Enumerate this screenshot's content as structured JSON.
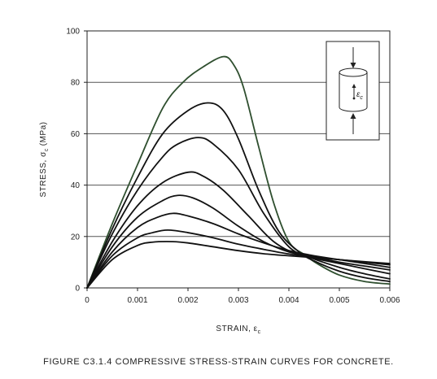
{
  "figure_caption": "FIGURE  C3.1.4   COMPRESSIVE STRESS-STRAIN CURVES FOR CONCRETE.",
  "chart_data": {
    "type": "line",
    "title": "",
    "xlabel": "STRAIN, ε",
    "xlabel_subscript": "c",
    "ylabel_prefix": "STRESS, σ",
    "ylabel_subscript": "c",
    "ylabel_suffix": "(MPa)",
    "xlim": [
      0,
      0.006
    ],
    "ylim": [
      0,
      100
    ],
    "x_ticks": [
      0,
      0.001,
      0.002,
      0.003,
      0.004,
      0.005,
      0.006
    ],
    "x_tick_labels": [
      "0",
      "0.001",
      "0.002",
      "0.003",
      "0.004",
      "0.005",
      "0.006"
    ],
    "y_ticks": [
      0,
      20,
      40,
      60,
      80,
      100
    ],
    "y_tick_labels": [
      "0",
      "20",
      "40",
      "60",
      "80",
      "100"
    ],
    "grid": "horizontal",
    "inset": {
      "strain_label": "ε",
      "strain_subscript": "c"
    },
    "series": [
      {
        "color": "#2f4f2f",
        "points": [
          [
            0,
            0
          ],
          [
            0.0005,
            25
          ],
          [
            0.001,
            48
          ],
          [
            0.0015,
            70
          ],
          [
            0.0019,
            80
          ],
          [
            0.0023,
            86
          ],
          [
            0.0027,
            90
          ],
          [
            0.0029,
            87
          ],
          [
            0.0031,
            78
          ],
          [
            0.0034,
            55
          ],
          [
            0.0037,
            33
          ],
          [
            0.004,
            18
          ],
          [
            0.0043,
            13
          ],
          [
            0.0046,
            9
          ],
          [
            0.005,
            5
          ],
          [
            0.0055,
            2.5
          ],
          [
            0.006,
            1.5
          ]
        ]
      },
      {
        "color": "#111111",
        "points": [
          [
            0,
            0
          ],
          [
            0.0005,
            23
          ],
          [
            0.001,
            43
          ],
          [
            0.0015,
            60
          ],
          [
            0.002,
            69
          ],
          [
            0.0024,
            72
          ],
          [
            0.0027,
            69
          ],
          [
            0.003,
            58
          ],
          [
            0.0034,
            38
          ],
          [
            0.0038,
            22
          ],
          [
            0.0042,
            14
          ],
          [
            0.0045,
            10.5
          ],
          [
            0.005,
            6.5
          ],
          [
            0.0055,
            4
          ],
          [
            0.006,
            2.5
          ]
        ]
      },
      {
        "color": "#111111",
        "points": [
          [
            0,
            0
          ],
          [
            0.0005,
            21
          ],
          [
            0.001,
            38
          ],
          [
            0.0015,
            51
          ],
          [
            0.0018,
            56
          ],
          [
            0.0022,
            58.5
          ],
          [
            0.0025,
            56
          ],
          [
            0.003,
            46
          ],
          [
            0.0035,
            29
          ],
          [
            0.004,
            16
          ],
          [
            0.0044,
            12
          ],
          [
            0.005,
            8
          ],
          [
            0.0055,
            5.5
          ],
          [
            0.006,
            3.5
          ]
        ]
      },
      {
        "color": "#111111",
        "points": [
          [
            0,
            0
          ],
          [
            0.0005,
            18
          ],
          [
            0.001,
            32
          ],
          [
            0.0015,
            41
          ],
          [
            0.002,
            45
          ],
          [
            0.0023,
            43.5
          ],
          [
            0.0027,
            38
          ],
          [
            0.0032,
            28
          ],
          [
            0.0037,
            18
          ],
          [
            0.0042,
            13
          ],
          [
            0.005,
            9.5
          ],
          [
            0.006,
            5.5
          ]
        ]
      },
      {
        "color": "#111111",
        "points": [
          [
            0,
            0
          ],
          [
            0.0005,
            16
          ],
          [
            0.001,
            27.5
          ],
          [
            0.0015,
            34
          ],
          [
            0.0018,
            36
          ],
          [
            0.0021,
            35
          ],
          [
            0.0025,
            31
          ],
          [
            0.003,
            24
          ],
          [
            0.0035,
            18
          ],
          [
            0.004,
            14
          ],
          [
            0.0045,
            12
          ],
          [
            0.005,
            10
          ],
          [
            0.0055,
            8.5
          ],
          [
            0.006,
            7
          ]
        ]
      },
      {
        "color": "#111111",
        "points": [
          [
            0,
            0
          ],
          [
            0.0005,
            14
          ],
          [
            0.001,
            23.5
          ],
          [
            0.0014,
            27.5
          ],
          [
            0.0017,
            29
          ],
          [
            0.002,
            28
          ],
          [
            0.0025,
            25
          ],
          [
            0.003,
            21
          ],
          [
            0.0035,
            17.5
          ],
          [
            0.004,
            14.5
          ],
          [
            0.0045,
            12.5
          ],
          [
            0.005,
            11
          ],
          [
            0.0055,
            9.5
          ],
          [
            0.006,
            8
          ]
        ]
      },
      {
        "color": "#111111",
        "points": [
          [
            0,
            0
          ],
          [
            0.0005,
            12.5
          ],
          [
            0.001,
            19.5
          ],
          [
            0.0013,
            21.5
          ],
          [
            0.0016,
            22.5
          ],
          [
            0.002,
            21.5
          ],
          [
            0.0025,
            19.5
          ],
          [
            0.003,
            17
          ],
          [
            0.0035,
            15
          ],
          [
            0.004,
            13.2
          ],
          [
            0.0045,
            12
          ],
          [
            0.005,
            11
          ],
          [
            0.0055,
            10
          ],
          [
            0.006,
            9
          ]
        ]
      },
      {
        "color": "#111111",
        "points": [
          [
            0,
            0
          ],
          [
            0.0005,
            11
          ],
          [
            0.001,
            16.5
          ],
          [
            0.0013,
            17.8
          ],
          [
            0.0017,
            18
          ],
          [
            0.002,
            17.5
          ],
          [
            0.0025,
            16
          ],
          [
            0.003,
            14.5
          ],
          [
            0.0035,
            13.3
          ],
          [
            0.004,
            12.5
          ],
          [
            0.0045,
            11.8
          ],
          [
            0.005,
            11
          ],
          [
            0.0055,
            10.2
          ],
          [
            0.006,
            9.5
          ]
        ]
      }
    ]
  }
}
